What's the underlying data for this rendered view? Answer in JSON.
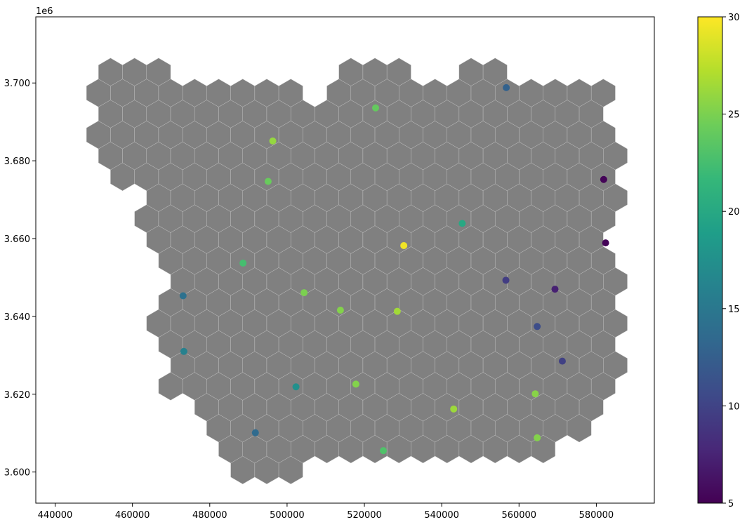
{
  "chart_data": {
    "type": "scatter",
    "title": "",
    "xlabel": "",
    "ylabel": "",
    "xlim": [
      435000,
      595000
    ],
    "ylim": [
      3592000,
      3717000
    ],
    "y_offset_text": "1e6",
    "x_ticks": [
      440000,
      460000,
      480000,
      500000,
      520000,
      540000,
      560000,
      580000
    ],
    "x_tick_labels": [
      "440000",
      "460000",
      "480000",
      "500000",
      "520000",
      "540000",
      "560000",
      "580000"
    ],
    "y_ticks": [
      3600000,
      3620000,
      3640000,
      3660000,
      3680000,
      3700000
    ],
    "y_tick_labels": [
      "3.600",
      "3.620",
      "3.640",
      "3.660",
      "3.680",
      "3.700"
    ],
    "grid": false,
    "hex_fill_color": "#808080",
    "hex_edge_color": "#c8c8c8",
    "colormap": "viridis",
    "colorbar": {
      "vmin": 5,
      "vmax": 30,
      "ticks": [
        5,
        10,
        15,
        20,
        25,
        30
      ],
      "tick_labels": [
        "5",
        "10",
        "15",
        "20",
        "25",
        "30"
      ]
    },
    "points": [
      {
        "x": 556700,
        "y": 3698800,
        "value": 12.8
      },
      {
        "x": 522900,
        "y": 3693600,
        "value": 24.0
      },
      {
        "x": 496300,
        "y": 3685100,
        "value": 26.0
      },
      {
        "x": 495100,
        "y": 3674700,
        "value": 24.2
      },
      {
        "x": 581900,
        "y": 3675200,
        "value": 5.2
      },
      {
        "x": 545300,
        "y": 3663900,
        "value": 20.0
      },
      {
        "x": 530200,
        "y": 3658200,
        "value": 29.5
      },
      {
        "x": 582400,
        "y": 3658900,
        "value": 5.2
      },
      {
        "x": 488600,
        "y": 3653700,
        "value": 22.5
      },
      {
        "x": 556600,
        "y": 3649300,
        "value": 9.5
      },
      {
        "x": 569300,
        "y": 3647000,
        "value": 7.3
      },
      {
        "x": 504400,
        "y": 3646100,
        "value": 25.0
      },
      {
        "x": 473100,
        "y": 3645300,
        "value": 14.3
      },
      {
        "x": 513800,
        "y": 3641600,
        "value": 25.3
      },
      {
        "x": 528500,
        "y": 3641300,
        "value": 26.5
      },
      {
        "x": 564700,
        "y": 3637400,
        "value": 10.8
      },
      {
        "x": 473300,
        "y": 3631000,
        "value": 16.0
      },
      {
        "x": 571200,
        "y": 3628500,
        "value": 9.8
      },
      {
        "x": 502300,
        "y": 3621900,
        "value": 17.5
      },
      {
        "x": 517800,
        "y": 3622600,
        "value": 25.3
      },
      {
        "x": 564200,
        "y": 3620100,
        "value": 25.5
      },
      {
        "x": 543100,
        "y": 3616200,
        "value": 26.3
      },
      {
        "x": 491800,
        "y": 3610100,
        "value": 13.7
      },
      {
        "x": 564700,
        "y": 3608800,
        "value": 25.3
      },
      {
        "x": 524900,
        "y": 3605500,
        "value": 23.0
      }
    ]
  }
}
